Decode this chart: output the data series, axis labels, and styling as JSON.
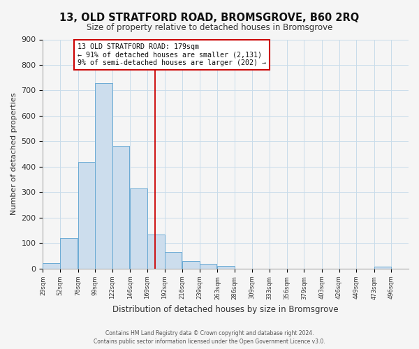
{
  "title": "13, OLD STRATFORD ROAD, BROMSGROVE, B60 2RQ",
  "subtitle": "Size of property relative to detached houses in Bromsgrove",
  "xlabel": "Distribution of detached houses by size in Bromsgrove",
  "ylabel": "Number of detached properties",
  "bar_left_edges": [
    29,
    52,
    76,
    99,
    122,
    146,
    169,
    192,
    216,
    239,
    263,
    286,
    309,
    333,
    356,
    379,
    403,
    426,
    449,
    473
  ],
  "bar_heights": [
    22,
    120,
    418,
    730,
    483,
    315,
    133,
    65,
    30,
    20,
    10,
    0,
    0,
    0,
    0,
    0,
    0,
    0,
    0,
    8
  ],
  "bin_width": 23,
  "bar_color": "#ccdded",
  "bar_edge_color": "#6aaad4",
  "property_line_x": 179,
  "property_line_color": "#cc0000",
  "annotation_line1": "13 OLD STRATFORD ROAD: 179sqm",
  "annotation_line2": "← 91% of detached houses are smaller (2,131)",
  "annotation_line3": "9% of semi-detached houses are larger (202) →",
  "annotation_box_color": "#cc0000",
  "ylim": [
    0,
    900
  ],
  "yticks": [
    0,
    100,
    200,
    300,
    400,
    500,
    600,
    700,
    800,
    900
  ],
  "tick_labels": [
    "29sqm",
    "52sqm",
    "76sqm",
    "99sqm",
    "122sqm",
    "146sqm",
    "169sqm",
    "192sqm",
    "216sqm",
    "239sqm",
    "263sqm",
    "286sqm",
    "309sqm",
    "333sqm",
    "356sqm",
    "379sqm",
    "403sqm",
    "426sqm",
    "449sqm",
    "473sqm",
    "496sqm"
  ],
  "footnote1": "Contains HM Land Registry data © Crown copyright and database right 2024.",
  "footnote2": "Contains public sector information licensed under the Open Government Licence v3.0.",
  "background_color": "#f5f5f5",
  "grid_color": "#c8dcea"
}
